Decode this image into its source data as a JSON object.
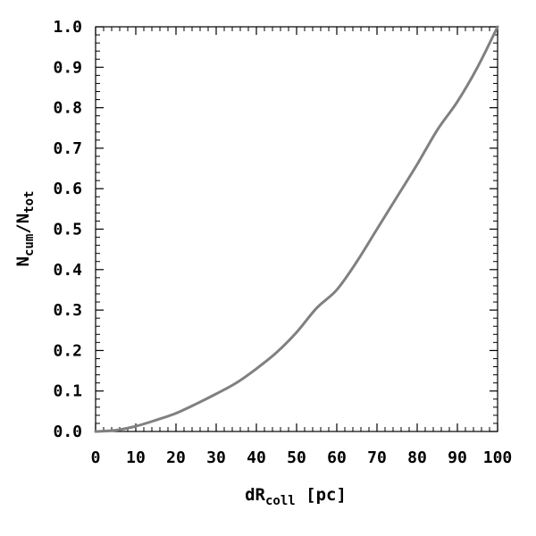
{
  "chart_data": {
    "type": "line",
    "title": "",
    "xlabel": {
      "main": "dR",
      "sub": "coll",
      "suffix": " [pc]"
    },
    "ylabel": {
      "num": "N",
      "num_sub": "cum",
      "sep": "/",
      "den": "N",
      "den_sub": "tot"
    },
    "xlim": [
      0,
      100
    ],
    "ylim": [
      0,
      1.0
    ],
    "x_ticks": [
      0,
      10,
      20,
      30,
      40,
      50,
      60,
      70,
      80,
      90,
      100
    ],
    "x_tick_labels": [
      "0",
      "10",
      "20",
      "30",
      "40",
      "50",
      "60",
      "70",
      "80",
      "90",
      "100"
    ],
    "y_ticks": [
      0,
      0.1,
      0.2,
      0.3,
      0.4,
      0.5,
      0.6,
      0.7,
      0.8,
      0.9,
      1.0
    ],
    "y_tick_labels": [
      "0.0",
      "0.1",
      "0.2",
      "0.3",
      "0.4",
      "0.5",
      "0.6",
      "0.7",
      "0.8",
      "0.9",
      "1.0"
    ],
    "grid": false,
    "line_color": "#808080",
    "series": [
      {
        "x": [
          0,
          5,
          10,
          15,
          20,
          25,
          30,
          35,
          40,
          45,
          50,
          55,
          60,
          65,
          70,
          75,
          80,
          85,
          90,
          95,
          100
        ],
        "y": [
          0.0,
          0.003,
          0.013,
          0.028,
          0.045,
          0.068,
          0.093,
          0.12,
          0.155,
          0.195,
          0.245,
          0.305,
          0.35,
          0.42,
          0.5,
          0.58,
          0.66,
          0.745,
          0.815,
          0.9,
          1.0
        ]
      }
    ]
  }
}
